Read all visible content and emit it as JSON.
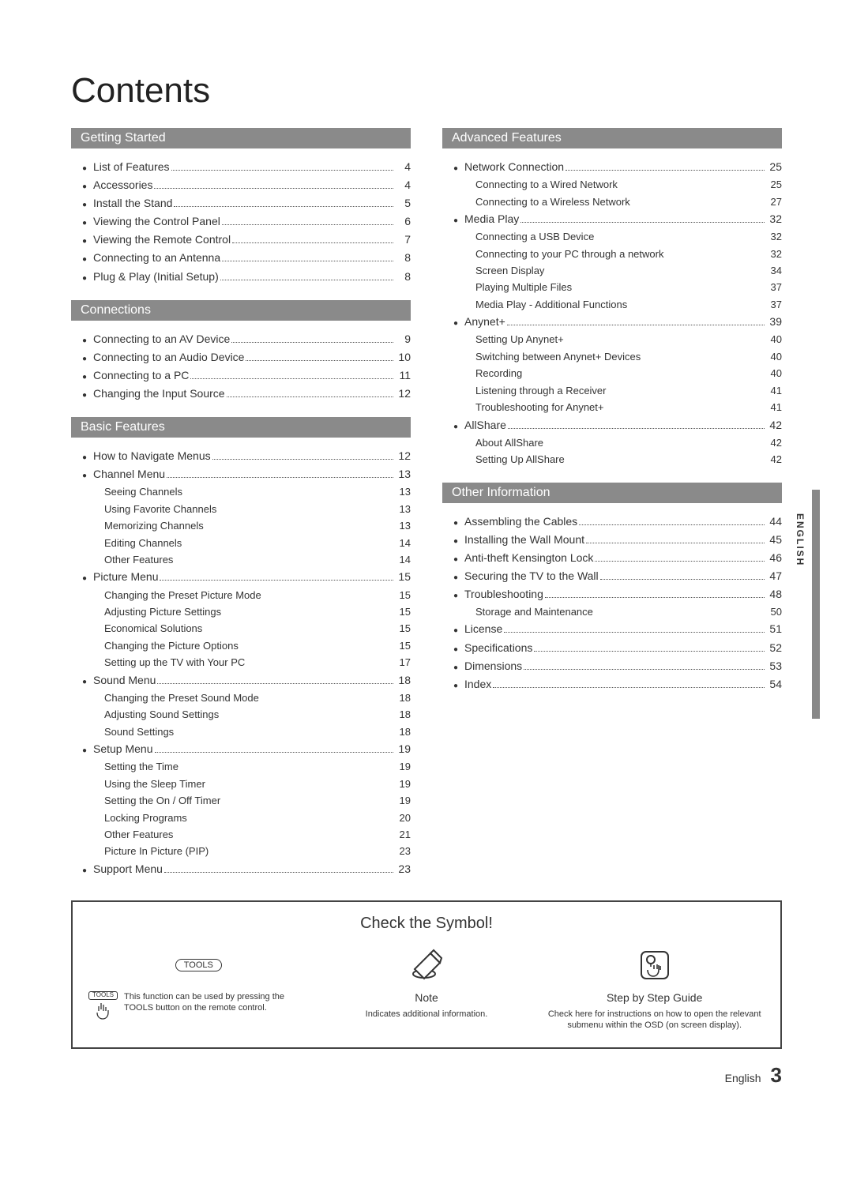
{
  "title": "Contents",
  "side_tab": "ENGLISH",
  "footer": {
    "lang": "English",
    "page": "3"
  },
  "colors": {
    "section_header_bg": "#8a8a8a",
    "section_header_fg": "#ffffff",
    "text": "#333333",
    "box_border": "#444444",
    "sidebar_bg": "#888888"
  },
  "left": [
    {
      "header": "Getting Started",
      "items": [
        {
          "label": "List of Features",
          "page": "4"
        },
        {
          "label": "Accessories",
          "page": "4"
        },
        {
          "label": "Install the Stand",
          "page": "5"
        },
        {
          "label": "Viewing the Control Panel",
          "page": "6"
        },
        {
          "label": "Viewing the Remote Control",
          "page": "7"
        },
        {
          "label": "Connecting to an Antenna",
          "page": "8"
        },
        {
          "label": "Plug & Play (Initial Setup)",
          "page": "8"
        }
      ]
    },
    {
      "header": "Connections",
      "items": [
        {
          "label": "Connecting to an AV Device",
          "page": "9"
        },
        {
          "label": "Connecting to an Audio Device",
          "page": "10"
        },
        {
          "label": "Connecting to a PC",
          "page": "11"
        },
        {
          "label": "Changing the Input Source",
          "page": "12"
        }
      ]
    },
    {
      "header": "Basic Features",
      "items": [
        {
          "label": "How to Navigate Menus",
          "page": "12"
        },
        {
          "label": "Channel Menu",
          "page": "13",
          "subs": [
            {
              "label": "Seeing Channels",
              "page": "13"
            },
            {
              "label": "Using Favorite Channels",
              "page": "13"
            },
            {
              "label": "Memorizing Channels",
              "page": "13"
            },
            {
              "label": "Editing Channels",
              "page": "14"
            },
            {
              "label": "Other Features",
              "page": "14"
            }
          ]
        },
        {
          "label": "Picture Menu",
          "page": "15",
          "subs": [
            {
              "label": "Changing the Preset Picture Mode",
              "page": "15"
            },
            {
              "label": "Adjusting Picture Settings",
              "page": "15"
            },
            {
              "label": "Economical Solutions",
              "page": "15"
            },
            {
              "label": "Changing the Picture Options",
              "page": "15"
            },
            {
              "label": "Setting up the TV with Your PC",
              "page": "17"
            }
          ]
        },
        {
          "label": "Sound Menu",
          "page": "18",
          "subs": [
            {
              "label": "Changing the Preset Sound Mode",
              "page": "18"
            },
            {
              "label": "Adjusting Sound Settings",
              "page": "18"
            },
            {
              "label": "Sound Settings",
              "page": "18"
            }
          ]
        },
        {
          "label": "Setup Menu",
          "page": "19",
          "subs": [
            {
              "label": "Setting the Time",
              "page": "19"
            },
            {
              "label": "Using the Sleep Timer",
              "page": "19"
            },
            {
              "label": "Setting the On / Off Timer",
              "page": "19"
            },
            {
              "label": "Locking Programs",
              "page": "20"
            },
            {
              "label": "Other Features",
              "page": "21"
            },
            {
              "label": "Picture In Picture (PIP)",
              "page": "23"
            }
          ]
        },
        {
          "label": "Support Menu",
          "page": "23"
        }
      ]
    }
  ],
  "right": [
    {
      "header": "Advanced Features",
      "items": [
        {
          "label": "Network Connection",
          "page": "25",
          "subs": [
            {
              "label": "Connecting to a Wired Network",
              "page": "25"
            },
            {
              "label": "Connecting to a Wireless Network",
              "page": "27"
            }
          ]
        },
        {
          "label": "Media Play",
          "page": "32",
          "subs": [
            {
              "label": "Connecting a USB Device",
              "page": "32"
            },
            {
              "label": "Connecting to your PC through a network",
              "page": "32"
            },
            {
              "label": "Screen Display",
              "page": "34"
            },
            {
              "label": "Playing Multiple Files",
              "page": "37"
            },
            {
              "label": "Media Play - Additional Functions",
              "page": "37"
            }
          ]
        },
        {
          "label": "Anynet+",
          "page": "39",
          "subs": [
            {
              "label": "Setting Up Anynet+",
              "page": "40"
            },
            {
              "label": "Switching between Anynet+ Devices",
              "page": "40"
            },
            {
              "label": "Recording",
              "page": "40"
            },
            {
              "label": "Listening through a Receiver",
              "page": "41"
            },
            {
              "label": "Troubleshooting for Anynet+",
              "page": "41"
            }
          ]
        },
        {
          "label": "AllShare",
          "page": "42",
          "subs": [
            {
              "label": "About AllShare",
              "page": "42"
            },
            {
              "label": "Setting Up AllShare",
              "page": "42"
            }
          ]
        }
      ]
    },
    {
      "header": "Other Information",
      "items": [
        {
          "label": "Assembling the Cables",
          "page": "44"
        },
        {
          "label": "Installing the Wall Mount",
          "page": "45"
        },
        {
          "label": "Anti-theft Kensington Lock",
          "page": "46"
        },
        {
          "label": "Securing the TV to the Wall",
          "page": "47"
        },
        {
          "label": "Troubleshooting",
          "page": "48",
          "subs": [
            {
              "label": "Storage and Maintenance",
              "page": "50"
            }
          ]
        },
        {
          "label": "License",
          "page": "51"
        },
        {
          "label": "Specifications",
          "page": "52"
        },
        {
          "label": "Dimensions",
          "page": "53"
        },
        {
          "label": "Index",
          "page": "54"
        }
      ]
    }
  ],
  "symbol_box": {
    "title": "Check the Symbol!",
    "cells": [
      {
        "badge1": "TOOLS",
        "badge2": "TOOLS",
        "label": "",
        "desc": "This function can be used by pressing the TOOLS button on the remote control."
      },
      {
        "label": "Note",
        "desc": "Indicates additional information."
      },
      {
        "label": "Step by Step Guide",
        "desc": "Check here for instructions on how to open the relevant submenu within the OSD (on screen display)."
      }
    ]
  }
}
